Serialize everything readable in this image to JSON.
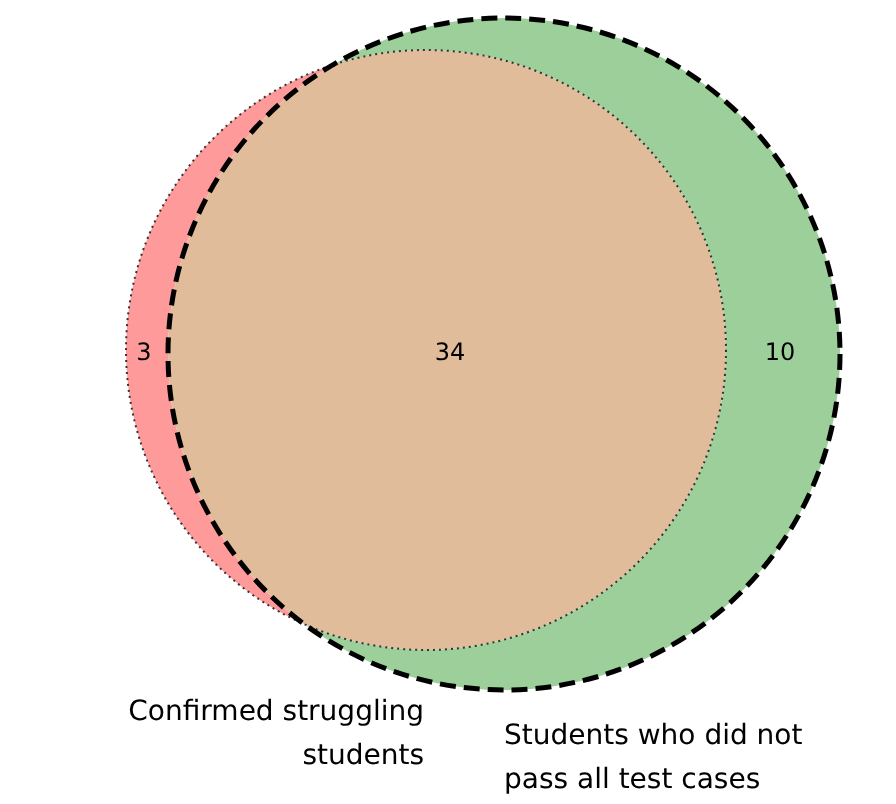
{
  "chart_data": {
    "type": "other",
    "categories": [
      null,
      null,
      null
    ],
    "values": [
      3,
      34,
      10
    ],
    "data_labels": true,
    "colors": [
      "#ff9a9a",
      "#e0bc9a",
      "#9ccf9a"
    ],
    "annotations": [
      "Confirmed struggling students",
      "Students who did not pass all test cases"
    ]
  }
}
